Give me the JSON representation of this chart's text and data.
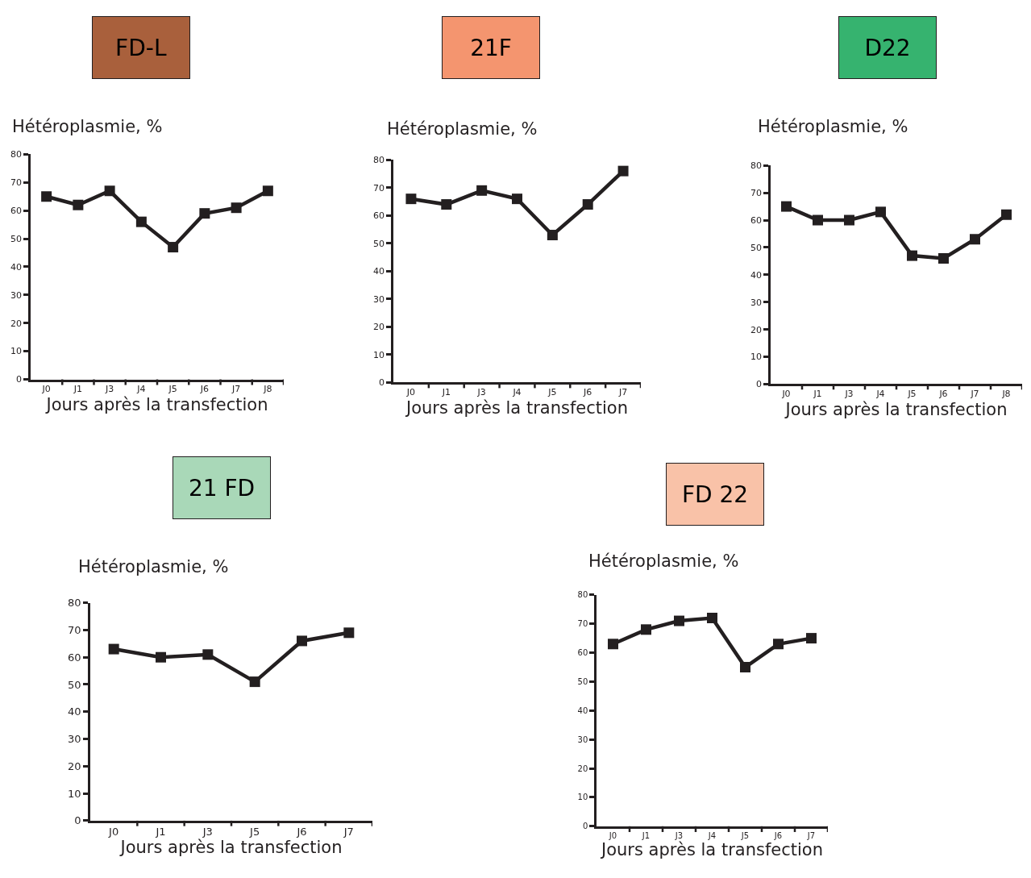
{
  "chart_data": [
    {
      "type": "line",
      "title": "FD-L",
      "ylabel": "Hétéroplasmie, %",
      "xlabel": "Jours après la transfection",
      "categories": [
        "J0",
        "J1",
        "J3",
        "J4",
        "J5",
        "J6",
        "J7",
        "J8"
      ],
      "series": [
        {
          "color": "#231f20",
          "values": [
            65,
            62,
            67,
            56,
            47,
            59,
            61,
            67
          ]
        }
      ],
      "ylim": [
        0,
        80
      ],
      "yticks": [
        0,
        10,
        20,
        30,
        40,
        50,
        60,
        70,
        80
      ],
      "marker": "square",
      "line_style": "solid"
    },
    {
      "type": "line",
      "title": "21F",
      "ylabel": "Hétéroplasmie, %",
      "xlabel": "Jours après la transfection",
      "categories": [
        "J0",
        "J1",
        "J3",
        "J4",
        "J5",
        "J6",
        "J7"
      ],
      "series": [
        {
          "color": "#231f20",
          "values": [
            66,
            64,
            69,
            66,
            53,
            64,
            76
          ]
        }
      ],
      "ylim": [
        0,
        80
      ],
      "yticks": [
        0,
        10,
        20,
        30,
        40,
        50,
        60,
        70,
        80
      ],
      "marker": "square",
      "line_style": "solid"
    },
    {
      "type": "line",
      "title": "D22",
      "ylabel": "Hétéroplasmie, %",
      "xlabel": "Jours après la transfection",
      "categories": [
        "J0",
        "J1",
        "J3",
        "J4",
        "J5",
        "J6",
        "J7",
        "J8"
      ],
      "series": [
        {
          "color": "#231f20",
          "values": [
            65,
            60,
            60,
            63,
            47,
            46,
            53,
            62
          ]
        }
      ],
      "ylim": [
        0,
        80
      ],
      "yticks": [
        0,
        10,
        20,
        30,
        40,
        50,
        60,
        70,
        80
      ],
      "marker": "square",
      "line_style": "solid"
    },
    {
      "type": "line",
      "title": "21 FD",
      "ylabel": "Hétéroplasmie, %",
      "xlabel": "Jours après la transfection",
      "categories": [
        "J0",
        "J1",
        "J3",
        "J5",
        "J6",
        "J7"
      ],
      "series": [
        {
          "color": "#231f20",
          "values": [
            63,
            60,
            61,
            51,
            66,
            69
          ]
        }
      ],
      "ylim": [
        0,
        80
      ],
      "yticks": [
        0,
        10,
        20,
        30,
        40,
        50,
        60,
        70,
        80
      ],
      "marker": "square",
      "line_style": "solid"
    },
    {
      "type": "line",
      "title": "FD 22",
      "ylabel": "Hétéroplasmie, %",
      "xlabel": "Jours après la transfection",
      "categories": [
        "J0",
        "J1",
        "J3",
        "J4",
        "J5",
        "J6",
        "J7"
      ],
      "series": [
        {
          "color": "#231f20",
          "values": [
            63,
            68,
            71,
            72,
            55,
            63,
            65
          ]
        }
      ],
      "ylim": [
        0,
        80
      ],
      "yticks": [
        0,
        10,
        20,
        30,
        40,
        50,
        60,
        70,
        80
      ],
      "marker": "square",
      "line_style": "solid"
    }
  ]
}
